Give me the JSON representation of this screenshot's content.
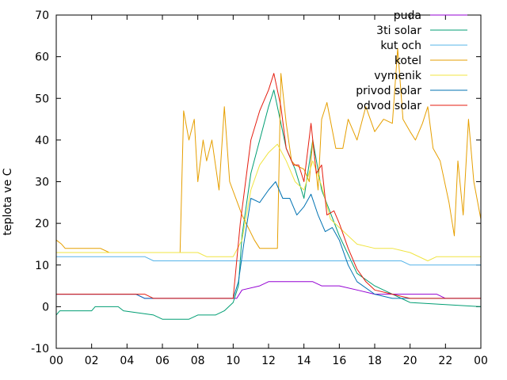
{
  "chart_data": {
    "type": "line",
    "title": "",
    "xlabel": "",
    "ylabel": "teplota ve C",
    "xlim": [
      0,
      24
    ],
    "ylim": [
      -10,
      70
    ],
    "x_ticks": [
      "00",
      "02",
      "04",
      "06",
      "08",
      "10",
      "12",
      "14",
      "16",
      "18",
      "20",
      "22",
      "00"
    ],
    "y_ticks": [
      -10,
      0,
      10,
      20,
      30,
      40,
      50,
      60,
      70
    ],
    "grid": false,
    "legend_position": "top-right",
    "series": [
      {
        "name": "puda",
        "color": "#9400d3",
        "x": [
          0,
          4.5,
          5,
          10.2,
          10.5,
          11.5,
          12,
          14.5,
          15,
          16,
          17,
          18,
          21.5,
          22,
          24
        ],
        "y": [
          3,
          3,
          2,
          2,
          4,
          5,
          6,
          6,
          5,
          5,
          4,
          3,
          3,
          2,
          2
        ]
      },
      {
        "name": "3ti solar",
        "color": "#009e73",
        "x": [
          0,
          0.2,
          2,
          2.2,
          3.5,
          3.8,
          5.5,
          6,
          7.5,
          8,
          9,
          9.5,
          10,
          10.3,
          10.5,
          11,
          12,
          12.3,
          13,
          13.5,
          14,
          14.5,
          15,
          16,
          17,
          18,
          19,
          20,
          24
        ],
        "y": [
          -2,
          -1,
          -1,
          0,
          0,
          -1,
          -2,
          -3,
          -3,
          -2,
          -2,
          -1,
          1,
          5,
          17,
          32,
          48,
          52,
          38,
          33,
          26,
          40,
          28,
          17,
          8,
          5,
          3,
          1,
          0
        ]
      },
      {
        "name": "kut och",
        "color": "#56b4e9",
        "x": [
          0,
          5,
          5.5,
          10,
          10.5,
          15,
          15.5,
          19.5,
          20,
          24
        ],
        "y": [
          12,
          12,
          11,
          11,
          11,
          11,
          11,
          11,
          10,
          10
        ]
      },
      {
        "name": "kotel",
        "color": "#e69f00",
        "x": [
          0,
          0.3,
          0.5,
          2.5,
          3,
          6,
          7,
          7.2,
          7.5,
          7.8,
          8,
          8.3,
          8.5,
          8.8,
          9.2,
          9.5,
          9.8,
          10.5,
          11.2,
          11.5,
          12.5,
          12.7,
          13,
          13.3,
          13.5,
          14,
          14.3,
          14.5,
          14.8,
          15,
          15.3,
          15.8,
          16.2,
          16.5,
          17,
          17.5,
          18,
          18.5,
          19,
          19.3,
          19.6,
          20,
          20.3,
          20.7,
          21,
          21.3,
          21.7,
          22.2,
          22.5,
          22.7,
          23,
          23.3,
          23.6,
          24
        ],
        "y": [
          16,
          15,
          14,
          14,
          13,
          13,
          13,
          47,
          40,
          45,
          30,
          40,
          35,
          40,
          28,
          48,
          30,
          22,
          16,
          14,
          14,
          56,
          44,
          35,
          34,
          33,
          30,
          40,
          28,
          45,
          49,
          38,
          38,
          45,
          40,
          48,
          42,
          45,
          44,
          62,
          45,
          42,
          40,
          44,
          48,
          38,
          35,
          25,
          17,
          35,
          22,
          45,
          30,
          21
        ]
      },
      {
        "name": "vymenik",
        "color": "#f0e442",
        "x": [
          0,
          6,
          8,
          8.5,
          10,
          10.5,
          11,
          11.5,
          12,
          12.5,
          13,
          13.5,
          14,
          14.5,
          15,
          15.5,
          16,
          17,
          18,
          19,
          20,
          21,
          21.5,
          24
        ],
        "y": [
          13,
          13,
          13,
          12,
          12,
          16,
          28,
          34,
          37,
          39,
          35,
          30,
          28,
          35,
          29,
          21,
          19,
          15,
          14,
          14,
          13,
          11,
          12,
          12
        ]
      },
      {
        "name": "privod solar",
        "color": "#0072b2",
        "x": [
          0,
          4.5,
          5,
          10,
          10.3,
          10.6,
          11,
          11.5,
          12,
          12.4,
          12.8,
          13.2,
          13.6,
          14,
          14.4,
          14.8,
          15.2,
          15.6,
          16,
          16.5,
          17,
          18,
          19,
          20,
          24
        ],
        "y": [
          3,
          3,
          2,
          2,
          6,
          15,
          26,
          25,
          28,
          30,
          26,
          26,
          22,
          24,
          27,
          22,
          18,
          19,
          16,
          10,
          6,
          3,
          2,
          2,
          2
        ]
      },
      {
        "name": "odvod solar",
        "color": "#e51e10",
        "x": [
          0,
          5,
          5.5,
          10,
          10.4,
          10.7,
          11,
          11.5,
          12,
          12.3,
          12.7,
          13,
          13.4,
          13.7,
          14,
          14.4,
          14.7,
          15,
          15.3,
          15.7,
          16,
          16.5,
          17,
          17.5,
          18,
          19,
          20,
          24
        ],
        "y": [
          3,
          3,
          2,
          2,
          20,
          30,
          40,
          47,
          52,
          56,
          48,
          38,
          34,
          34,
          30,
          44,
          32,
          34,
          22,
          23,
          20,
          14,
          9,
          6,
          4,
          3,
          2,
          2
        ]
      }
    ]
  }
}
